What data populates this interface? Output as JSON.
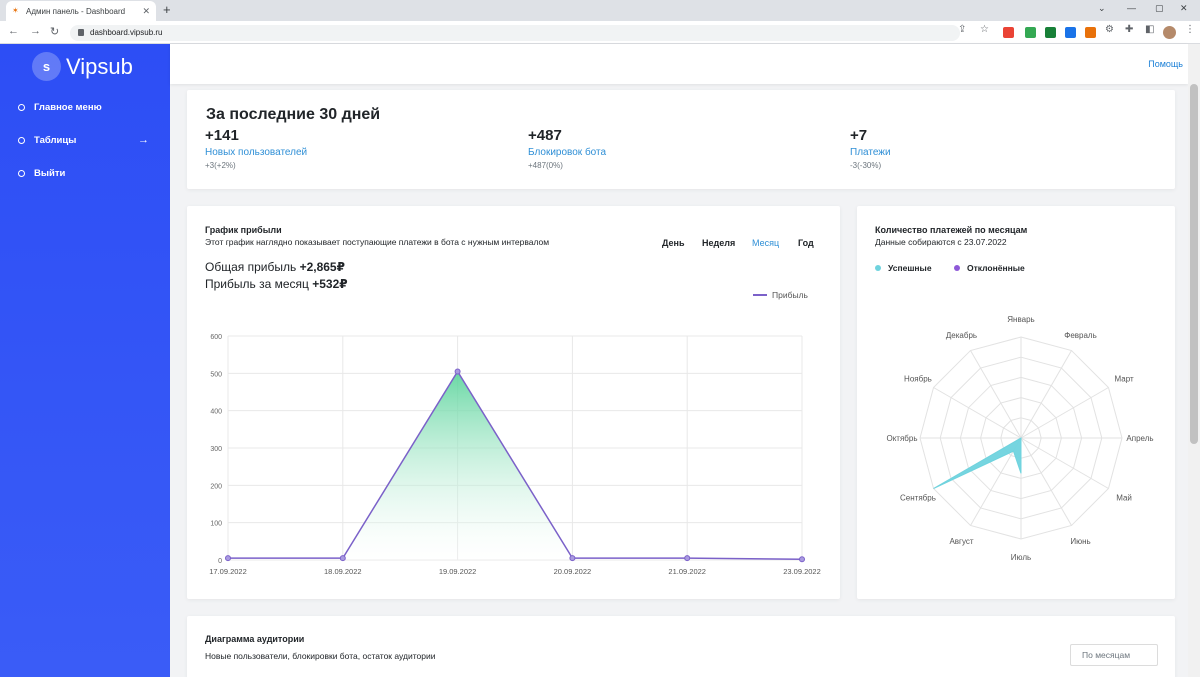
{
  "browser": {
    "tab_title": "Админ панель - Dashboard",
    "url": "dashboard.vipsub.ru"
  },
  "sidebar": {
    "logo_letter": "s",
    "logo_text": "Vipsub",
    "items": [
      {
        "label": "Главное меню"
      },
      {
        "label": "Таблицы",
        "arrow": "→"
      },
      {
        "label": "Выйти"
      }
    ]
  },
  "topbar": {
    "help_label": "Помощь"
  },
  "stats": {
    "title": "За последние 30 дней",
    "items": [
      {
        "value": "+141",
        "label": "Новых пользователей",
        "change": "+3(+2%)"
      },
      {
        "value": "+487",
        "label": "Блокировок бота",
        "change": "+487(0%)"
      },
      {
        "value": "+7",
        "label": "Платежи",
        "change": "-3(-30%)"
      }
    ]
  },
  "profit": {
    "title": "График прибыли",
    "subtitle": "Этот график наглядно показывает поступающие платежи в бота с нужным интервалом",
    "periods": [
      "День",
      "Неделя",
      "Месяц",
      "Год"
    ],
    "active_period": "Месяц",
    "total_label": "Общая прибыль",
    "total_value": "+2,865₽",
    "month_label": "Прибыль за месяц",
    "month_value": "+532₽",
    "legend_label": "Прибыль",
    "colors": {
      "line": "#7b61c9",
      "fill_top": "#58d39a",
      "fill_bottom": "#ffffff"
    }
  },
  "radar": {
    "title": "Количество платежей по месяцам",
    "subtitle": "Данные собираются с 23.07.2022",
    "legend": [
      {
        "label": "Успешные",
        "color": "#6fd3de"
      },
      {
        "label": "Отклонённые",
        "color": "#8e59d8"
      }
    ]
  },
  "audience": {
    "title": "Диаграмма аудитории",
    "subtitle": "Новые пользователи, блокировки бота, остаток аудитории",
    "select_placeholder": "По месяцам"
  },
  "chart_data": [
    {
      "type": "area",
      "x": [
        "17.09.2022",
        "18.09.2022",
        "19.09.2022",
        "20.09.2022",
        "21.09.2022",
        "23.09.2022"
      ],
      "series": [
        {
          "name": "Прибыль",
          "values": [
            5,
            5,
            505,
            5,
            5,
            2
          ]
        }
      ],
      "ylim": [
        0,
        600
      ],
      "yticks": [
        0,
        100,
        200,
        300,
        400,
        500,
        600
      ],
      "grid": true,
      "legend": "top-right"
    },
    {
      "type": "radar",
      "categories": [
        "Январь",
        "Февраль",
        "Март",
        "Апрель",
        "Май",
        "Июнь",
        "Июль",
        "Август",
        "Сентябрь",
        "Октябрь",
        "Ноябрь",
        "Декабрь"
      ],
      "series": [
        {
          "name": "Успешные",
          "values": [
            0,
            0,
            0,
            0,
            0,
            0,
            0.35,
            0.15,
            1.0,
            0,
            0,
            0
          ]
        },
        {
          "name": "Отклонённые",
          "values": [
            0,
            0,
            0,
            0,
            0,
            0,
            0,
            0,
            0,
            0,
            0,
            0
          ]
        }
      ],
      "rmax": 1,
      "legend": "top-left"
    }
  ]
}
